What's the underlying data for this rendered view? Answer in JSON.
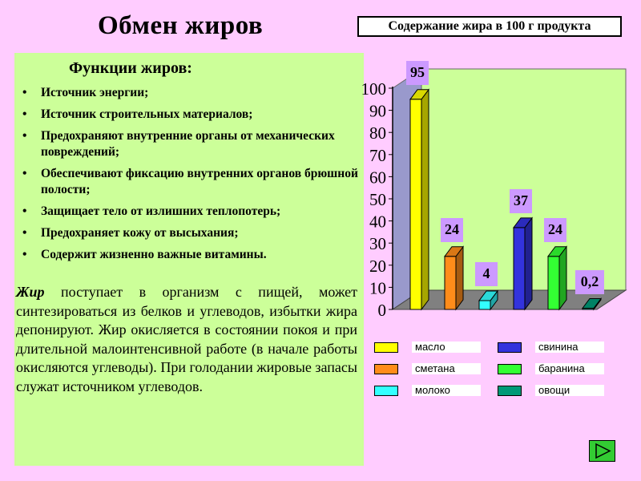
{
  "slide": {
    "title": "Обмен жиров",
    "functions_heading": "Функции жиров:",
    "functions": [
      "Источник энергии;",
      "Источник строительных материалов;",
      "Предохраняют внутренние органы от механических повреждений;",
      "Обеспечивают фиксацию внутренних органов брюшной полости;",
      "Защищает тело от излишних теплопотерь;",
      "Предохраняет кожу от высыхания;",
      "Содержит жизненно важные витамины."
    ],
    "paragraph_lead": "Жир",
    "paragraph_text": " поступает в организм с пищей, может синтезироваться из белков и углеводов, избытки жира депонируют. Жир окисляется в состоянии покоя и при длительной малоинтенсивной работе (в начале работы окисляются углеводы). При голодании жировые запасы служат источником углеводов."
  },
  "colors": {
    "background": "#ffccff",
    "text_panel": "#ccff99",
    "plot_area": "#ccff99",
    "value_label_bg": "#cc99ff",
    "nav_button": "#33cc33"
  },
  "chart_data": {
    "type": "bar",
    "title": "Содержание жира в 100 г продукта",
    "categories": [
      "масло",
      "сметана",
      "молоко",
      "свинина",
      "баранина",
      "овощи"
    ],
    "values": [
      95,
      24,
      4,
      37,
      24,
      0.2
    ],
    "value_labels": [
      "95",
      "24",
      "4",
      "37",
      "24",
      "0,2"
    ],
    "colors": [
      "#ffff00",
      "#ff8c1a",
      "#33ffff",
      "#3333dd",
      "#33ff33",
      "#009977"
    ],
    "ylim": [
      0,
      100
    ],
    "yticks": [
      0,
      10,
      20,
      30,
      40,
      50,
      60,
      70,
      80,
      90,
      100
    ],
    "style": "3d",
    "legend_placement": "bottom"
  },
  "navigation": {
    "icon": "next-slide-icon"
  }
}
